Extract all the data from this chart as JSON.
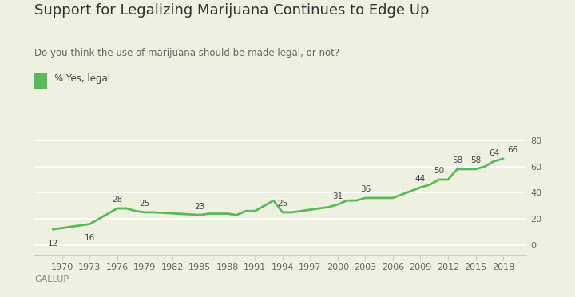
{
  "title": "Support for Legalizing Marijuana Continues to Edge Up",
  "subtitle": "Do you think the use of marijuana should be made legal, or not?",
  "legend_label": "% Yes, legal",
  "gallup_label": "GALLUP",
  "line_color": "#5cb85c",
  "background_color": "#eef0e0",
  "years": [
    1969,
    1972,
    1973,
    1976,
    1977,
    1978,
    1979,
    1980,
    1985,
    1986,
    1987,
    1988,
    1989,
    1990,
    1991,
    1993,
    1994,
    1995,
    1996,
    1999,
    2000,
    2001,
    2002,
    2003,
    2005,
    2006,
    2009,
    2010,
    2011,
    2012,
    2013,
    2015,
    2016,
    2017,
    2018
  ],
  "values": [
    12,
    15,
    16,
    28,
    28,
    26,
    25,
    25,
    23,
    24,
    24,
    24,
    23,
    26,
    26,
    34,
    25,
    25,
    26,
    29,
    31,
    34,
    34,
    36,
    36,
    36,
    44,
    46,
    50,
    50,
    58,
    58,
    60,
    64,
    66
  ],
  "selected_annotations": {
    "1969": {
      "val": 12,
      "xoff": 0,
      "yoff": -9,
      "ha": "center"
    },
    "1973": {
      "val": 16,
      "xoff": 0,
      "yoff": -9,
      "ha": "center"
    },
    "1976": {
      "val": 28,
      "xoff": 0,
      "yoff": 4,
      "ha": "center"
    },
    "1979": {
      "val": 25,
      "xoff": 0,
      "yoff": 4,
      "ha": "center"
    },
    "1985": {
      "val": 23,
      "xoff": 0,
      "yoff": 4,
      "ha": "center"
    },
    "1994": {
      "val": 25,
      "xoff": 0,
      "yoff": 4,
      "ha": "center"
    },
    "2000": {
      "val": 31,
      "xoff": 0,
      "yoff": 4,
      "ha": "center"
    },
    "2003": {
      "val": 36,
      "xoff": 0,
      "yoff": 4,
      "ha": "center"
    },
    "2009": {
      "val": 44,
      "xoff": 0,
      "yoff": 4,
      "ha": "center"
    },
    "2011": {
      "val": 50,
      "xoff": 0,
      "yoff": 4,
      "ha": "center"
    },
    "2013": {
      "val": 58,
      "xoff": 0,
      "yoff": 4,
      "ha": "center"
    },
    "2015": {
      "val": 58,
      "xoff": 0,
      "yoff": 4,
      "ha": "center"
    },
    "2017": {
      "val": 64,
      "xoff": 0,
      "yoff": 4,
      "ha": "center"
    },
    "2018": {
      "val": 66,
      "xoff": 4,
      "yoff": 4,
      "ha": "left"
    }
  },
  "xtick_labels": [
    "1970",
    "1973",
    "1976",
    "1979",
    "1982",
    "1985",
    "1988",
    "1991",
    "1994",
    "1997",
    "2000",
    "2003",
    "2006",
    "2009",
    "2012",
    "2015",
    "2018"
  ],
  "xtick_years": [
    1970,
    1973,
    1976,
    1979,
    1982,
    1985,
    1988,
    1991,
    1994,
    1997,
    2000,
    2003,
    2006,
    2009,
    2012,
    2015,
    2018
  ],
  "ytick_values": [
    0,
    20,
    40,
    60,
    80
  ],
  "ylim": [
    -8,
    92
  ],
  "xlim": [
    1967,
    2020.5
  ]
}
